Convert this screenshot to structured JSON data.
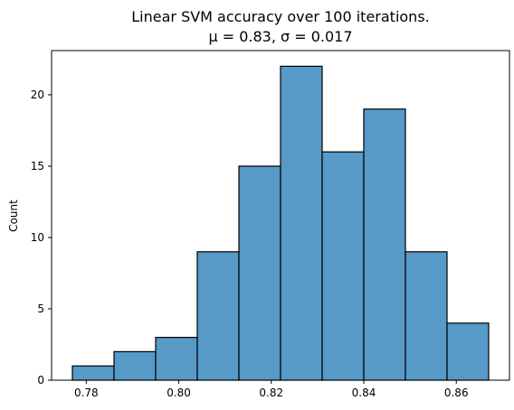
{
  "chart_data": {
    "type": "bar",
    "subtype": "histogram",
    "title_line1": "Linear SVM accuracy over 100 iterations.",
    "title_line2": "μ = 0.83, σ = 0.017",
    "xlabel": "",
    "ylabel": "Count",
    "bar_color": "#5799c7",
    "edge_color": "#000000",
    "grid": false,
    "bin_edges": [
      0.777,
      0.786,
      0.795,
      0.804,
      0.813,
      0.822,
      0.831,
      0.84,
      0.849,
      0.858,
      0.867
    ],
    "counts": [
      1,
      2,
      3,
      9,
      15,
      22,
      16,
      19,
      9,
      4
    ],
    "xlim": [
      0.7725,
      0.8715
    ],
    "ylim": [
      0,
      23.1
    ],
    "x_ticks": [
      0.78,
      0.8,
      0.82,
      0.84,
      0.86
    ],
    "x_tick_labels": [
      "0.78",
      "0.80",
      "0.82",
      "0.84",
      "0.86"
    ],
    "y_ticks": [
      0,
      5,
      10,
      15,
      20
    ],
    "y_tick_labels": [
      "0",
      "5",
      "10",
      "15",
      "20"
    ]
  }
}
